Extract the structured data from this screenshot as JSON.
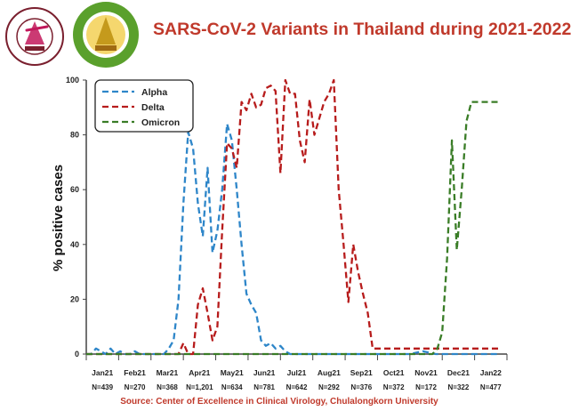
{
  "header": {
    "title": "SARS-CoV-2 Variants in Thailand during 2021-2022",
    "logo_left_name": "Center of Excellence in Clinical Virology",
    "logo_right_name": "Faculty of Medicine Chulalongkorn University"
  },
  "source_text": "Source: Center of Excellence in Clinical Virology, Chulalongkorn University",
  "chart_data": {
    "type": "line",
    "title": "SARS-CoV-2 Variants in Thailand during 2021-2022",
    "xlabel": "",
    "ylabel": "% positive cases",
    "ylim": [
      0,
      100
    ],
    "yticks": [
      0,
      20,
      40,
      60,
      80,
      100
    ],
    "grid": false,
    "legend_position": "top-left",
    "categories": [
      "Jan21",
      "Feb21",
      "Mar21",
      "Apr21",
      "May21",
      "Jun21",
      "Jul21",
      "Aug21",
      "Sep21",
      "Oct21",
      "Nov21",
      "Dec21",
      "Jan22"
    ],
    "n_labels": [
      "N=439",
      "N=270",
      "N=368",
      "N=1,201",
      "N=634",
      "N=781",
      "N=642",
      "N=292",
      "N=376",
      "N=372",
      "N=172",
      "N=322",
      "N=477"
    ],
    "x_range": [
      0,
      13
    ],
    "series": [
      {
        "name": "Alpha",
        "color": "#2e86c9",
        "x": [
          0.0,
          0.15,
          0.3,
          0.45,
          0.6,
          0.75,
          0.9,
          1.05,
          1.2,
          1.35,
          1.5,
          1.65,
          1.8,
          1.95,
          2.1,
          2.25,
          2.4,
          2.55,
          2.7,
          2.85,
          3.0,
          3.15,
          3.3,
          3.45,
          3.6,
          3.75,
          3.9,
          4.05,
          4.2,
          4.35,
          4.5,
          4.65,
          4.8,
          4.95,
          5.1,
          5.25,
          5.4,
          5.55,
          5.7,
          5.85,
          6.0,
          6.15,
          6.3,
          6.45,
          6.6,
          6.75,
          6.9,
          7.05,
          7.2,
          7.35,
          7.5,
          7.65,
          7.8,
          7.95,
          8.1,
          8.4,
          8.8,
          9.2,
          9.6,
          10.0,
          10.4,
          10.8,
          11.2,
          11.6,
          12.0,
          12.4,
          12.8
        ],
        "values": [
          0,
          0,
          2,
          1,
          0,
          2,
          0,
          1,
          0,
          0,
          1,
          0,
          0,
          0,
          0,
          0,
          0,
          2,
          5,
          20,
          55,
          81,
          75,
          55,
          43,
          68,
          37,
          45,
          60,
          84,
          78,
          60,
          40,
          22,
          18,
          15,
          5,
          3,
          4,
          2,
          3,
          1,
          0,
          0,
          0,
          0,
          0,
          0,
          0,
          0,
          0,
          0,
          0,
          0,
          0,
          0,
          0,
          0,
          0,
          0,
          1,
          0,
          0,
          0,
          0,
          0,
          0
        ]
      },
      {
        "name": "Delta",
        "color": "#b71c1c",
        "x": [
          0.0,
          1.0,
          2.0,
          2.85,
          3.0,
          3.15,
          3.3,
          3.45,
          3.6,
          3.75,
          3.9,
          4.05,
          4.2,
          4.35,
          4.5,
          4.65,
          4.8,
          4.95,
          5.1,
          5.25,
          5.4,
          5.55,
          5.7,
          5.85,
          6.0,
          6.15,
          6.3,
          6.45,
          6.6,
          6.75,
          6.9,
          7.05,
          7.2,
          7.35,
          7.5,
          7.65,
          7.8,
          7.95,
          8.1,
          8.25,
          8.4,
          8.55,
          8.7,
          8.85,
          9.0,
          9.15,
          9.3,
          9.45,
          9.6,
          9.75,
          9.9,
          10.05,
          10.2,
          10.35,
          10.5,
          10.65,
          10.8,
          10.95,
          11.1,
          11.25,
          11.4,
          11.55,
          11.7,
          11.85,
          12.0,
          12.15,
          12.3,
          12.45,
          12.6,
          12.8
        ],
        "values": [
          0,
          0,
          0,
          0,
          4,
          0,
          0,
          18,
          24,
          15,
          5,
          10,
          45,
          77,
          75,
          68,
          92,
          89,
          95,
          90,
          91,
          97,
          98,
          96,
          66,
          100,
          95,
          95,
          78,
          70,
          93,
          80,
          86,
          92,
          95,
          100,
          60,
          40,
          19,
          40,
          30,
          22,
          15,
          2,
          2,
          2,
          2,
          2,
          2,
          2,
          2,
          2,
          2,
          2,
          2,
          2,
          2,
          2,
          2,
          2,
          2,
          2,
          2,
          2,
          2,
          2,
          2,
          2,
          2,
          2
        ]
      },
      {
        "name": "Omicron",
        "color": "#3a7d27",
        "x": [
          0.0,
          1.0,
          2.0,
          3.0,
          4.0,
          5.0,
          6.0,
          7.0,
          8.0,
          9.0,
          10.0,
          10.5,
          10.7,
          10.85,
          11.0,
          11.15,
          11.3,
          11.45,
          11.6,
          11.75,
          11.9,
          12.05,
          12.2,
          12.35,
          12.5,
          12.65,
          12.8
        ],
        "values": [
          0,
          0,
          0,
          0,
          0,
          0,
          0,
          0,
          0,
          0,
          0,
          0,
          0,
          2,
          8,
          35,
          78,
          38,
          60,
          85,
          92,
          92,
          92,
          92,
          92,
          92,
          92
        ]
      }
    ]
  }
}
